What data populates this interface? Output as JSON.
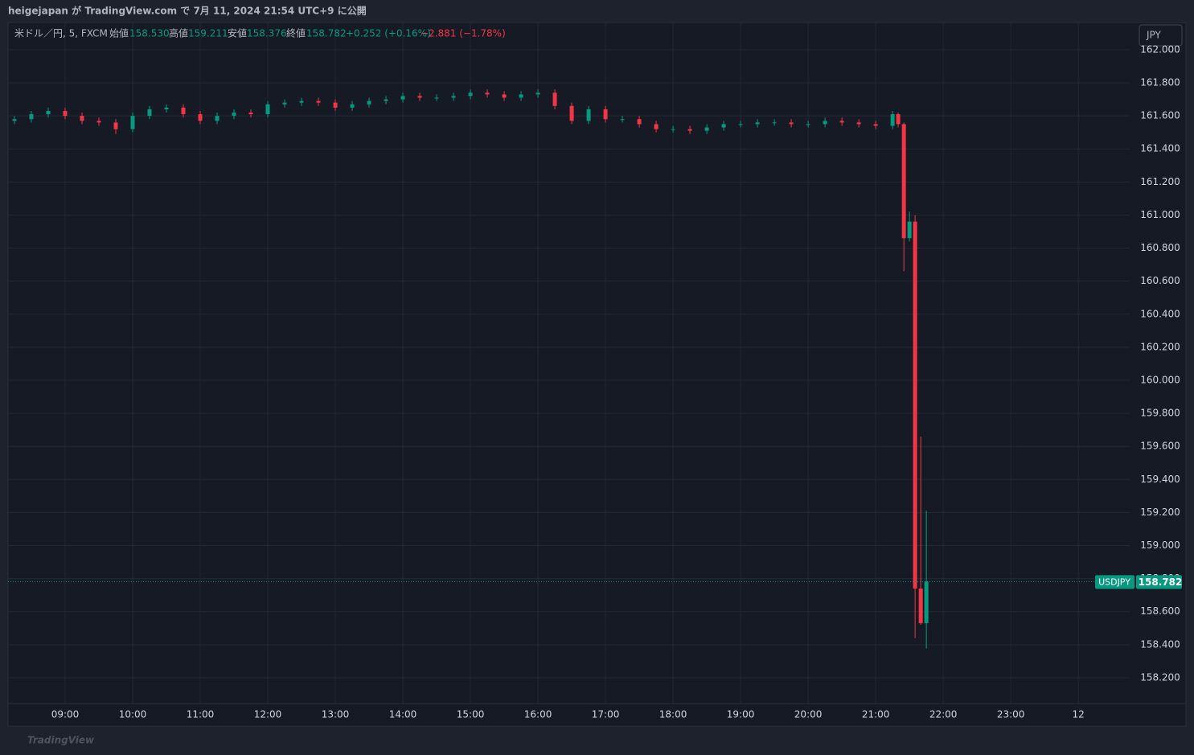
{
  "header": {
    "published": "heigejapan が TradingView.com で 7月 11, 2024 21:54 UTC+9 に公開"
  },
  "legend": {
    "symbol": "米ドル／円, 5, FXCM",
    "open_label": "始値",
    "open": "158.530",
    "high_label": "高値",
    "high": "159.211",
    "low_label": "安値",
    "low": "158.376",
    "close_label": "終値",
    "close": "158.782",
    "change_bar": "+0.252 (+0.16%)",
    "change_day": "−2.881 (−1.78%)"
  },
  "currency_button": "JPY",
  "price_tag": {
    "symbol": "USDJPY",
    "price": "158.782"
  },
  "watermark": "TradingView",
  "chart_data": {
    "type": "candlestick",
    "up_color": "#089981",
    "down_color": "#f23645",
    "grid": true,
    "x": [
      8.25,
      8.5,
      8.75,
      9.0,
      9.25,
      9.5,
      9.75,
      10.0,
      10.25,
      10.5,
      10.75,
      11.0,
      11.25,
      11.5,
      11.75,
      12.0,
      12.25,
      12.5,
      12.75,
      13.0,
      13.25,
      13.5,
      13.75,
      14.0,
      14.25,
      14.5,
      14.75,
      15.0,
      15.25,
      15.5,
      15.75,
      16.0,
      16.25,
      16.5,
      16.75,
      17.0,
      17.25,
      17.5,
      17.75,
      18.0,
      18.25,
      18.5,
      18.75,
      19.0,
      19.25,
      19.5,
      19.75,
      20.0,
      20.25,
      20.5,
      20.75,
      21.0,
      21.25,
      21.333,
      21.417,
      21.5,
      21.583,
      21.667,
      21.75
    ],
    "open": [
      161.57,
      161.58,
      161.61,
      161.63,
      161.6,
      161.57,
      161.56,
      161.52,
      161.6,
      161.64,
      161.65,
      161.61,
      161.57,
      161.6,
      161.62,
      161.61,
      161.67,
      161.68,
      161.69,
      161.68,
      161.65,
      161.67,
      161.69,
      161.7,
      161.72,
      161.71,
      161.71,
      161.72,
      161.74,
      161.73,
      161.71,
      161.73,
      161.74,
      161.66,
      161.57,
      161.64,
      161.58,
      161.58,
      161.55,
      161.52,
      161.52,
      161.51,
      161.53,
      161.55,
      161.55,
      161.56,
      161.56,
      161.55,
      161.55,
      161.57,
      161.56,
      161.55,
      161.54,
      161.61,
      161.55,
      160.86,
      160.96,
      158.74,
      158.53
    ],
    "high": [
      161.6,
      161.63,
      161.65,
      161.65,
      161.62,
      161.59,
      161.58,
      161.62,
      161.66,
      161.67,
      161.67,
      161.63,
      161.62,
      161.64,
      161.64,
      161.69,
      161.7,
      161.71,
      161.71,
      161.7,
      161.69,
      161.71,
      161.72,
      161.74,
      161.74,
      161.73,
      161.74,
      161.76,
      161.76,
      161.75,
      161.75,
      161.76,
      161.76,
      161.68,
      161.66,
      161.66,
      161.6,
      161.6,
      161.57,
      161.54,
      161.54,
      161.55,
      161.57,
      161.57,
      161.58,
      161.58,
      161.58,
      161.57,
      161.59,
      161.59,
      161.58,
      161.57,
      161.63,
      161.62,
      161.56,
      161.02,
      161.0,
      159.66,
      159.211
    ],
    "low": [
      161.55,
      161.56,
      161.59,
      161.58,
      161.55,
      161.54,
      161.49,
      161.5,
      161.58,
      161.62,
      161.59,
      161.55,
      161.55,
      161.58,
      161.59,
      161.59,
      161.65,
      161.66,
      161.66,
      161.63,
      161.63,
      161.65,
      161.67,
      161.68,
      161.69,
      161.69,
      161.69,
      161.7,
      161.71,
      161.69,
      161.69,
      161.71,
      161.64,
      161.55,
      161.55,
      161.56,
      161.56,
      161.53,
      161.5,
      161.5,
      161.49,
      161.49,
      161.51,
      161.53,
      161.53,
      161.54,
      161.53,
      161.53,
      161.53,
      161.54,
      161.53,
      161.52,
      161.52,
      161.53,
      160.66,
      160.84,
      158.44,
      158.52,
      158.376
    ],
    "close": [
      161.58,
      161.61,
      161.63,
      161.6,
      161.57,
      161.56,
      161.52,
      161.6,
      161.64,
      161.65,
      161.61,
      161.57,
      161.6,
      161.62,
      161.61,
      161.67,
      161.68,
      161.69,
      161.68,
      161.65,
      161.67,
      161.69,
      161.7,
      161.72,
      161.71,
      161.71,
      161.72,
      161.74,
      161.73,
      161.71,
      161.73,
      161.74,
      161.66,
      161.57,
      161.64,
      161.58,
      161.58,
      161.55,
      161.52,
      161.52,
      161.51,
      161.53,
      161.55,
      161.55,
      161.56,
      161.56,
      161.55,
      161.55,
      161.57,
      161.56,
      161.55,
      161.54,
      161.61,
      161.55,
      160.86,
      160.96,
      158.74,
      158.53,
      158.782
    ],
    "xlim": [
      8.155,
      24.76
    ],
    "xticks": [
      {
        "value": 9,
        "label": "09:00"
      },
      {
        "value": 10,
        "label": "10:00"
      },
      {
        "value": 11,
        "label": "11:00"
      },
      {
        "value": 12,
        "label": "12:00"
      },
      {
        "value": 13,
        "label": "13:00"
      },
      {
        "value": 14,
        "label": "14:00"
      },
      {
        "value": 15,
        "label": "15:00"
      },
      {
        "value": 16,
        "label": "16:00"
      },
      {
        "value": 17,
        "label": "17:00"
      },
      {
        "value": 18,
        "label": "18:00"
      },
      {
        "value": 19,
        "label": "19:00"
      },
      {
        "value": 20,
        "label": "20:00"
      },
      {
        "value": 21,
        "label": "21:00"
      },
      {
        "value": 22,
        "label": "22:00"
      },
      {
        "value": 23,
        "label": "23:00"
      },
      {
        "value": 24,
        "label": "12"
      }
    ],
    "ylim": [
      158.044,
      162.165
    ],
    "yticks": [
      {
        "value": 158.2,
        "label": "158.200"
      },
      {
        "value": 158.4,
        "label": "158.400"
      },
      {
        "value": 158.6,
        "label": "158.600"
      },
      {
        "value": 158.8,
        "label": "158.800"
      },
      {
        "value": 159,
        "label": "159.000"
      },
      {
        "value": 159.2,
        "label": "159.200"
      },
      {
        "value": 159.4,
        "label": "159.400"
      },
      {
        "value": 159.6,
        "label": "159.600"
      },
      {
        "value": 159.8,
        "label": "159.800"
      },
      {
        "value": 160,
        "label": "160.000"
      },
      {
        "value": 160.2,
        "label": "160.200"
      },
      {
        "value": 160.4,
        "label": "160.400"
      },
      {
        "value": 160.6,
        "label": "160.600"
      },
      {
        "value": 160.8,
        "label": "160.800"
      },
      {
        "value": 161,
        "label": "161.000"
      },
      {
        "value": 161.2,
        "label": "161.200"
      },
      {
        "value": 161.4,
        "label": "161.400"
      },
      {
        "value": 161.6,
        "label": "161.600"
      },
      {
        "value": 161.8,
        "label": "161.800"
      },
      {
        "value": 162,
        "label": "162.000"
      }
    ]
  }
}
